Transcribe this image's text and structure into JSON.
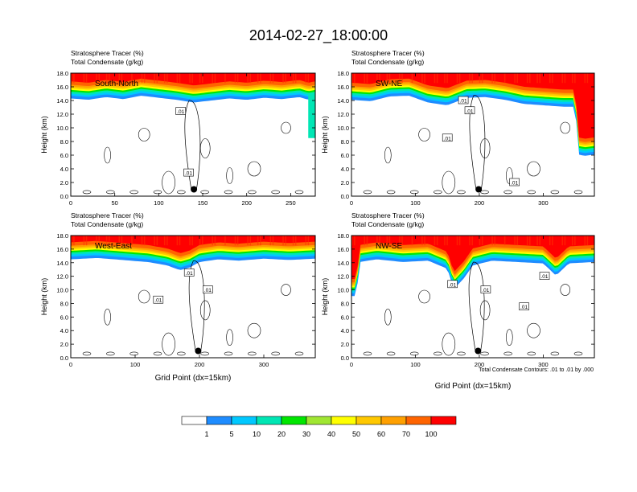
{
  "title": "2014-02-27_18:00:00",
  "contour_note": "Total Condensate Contours: .01 to .01 by .000",
  "colorbar": {
    "colors": [
      "#ffffff",
      "#1e8cff",
      "#00c8ff",
      "#00e6b4",
      "#00e600",
      "#a0e632",
      "#ffff00",
      "#ffc800",
      "#ffa000",
      "#ff6400",
      "#ff0000"
    ],
    "labels": [
      "1",
      "5",
      "10",
      "20",
      "30",
      "40",
      "50",
      "60",
      "70",
      "100"
    ]
  },
  "chart_data": [
    {
      "type": "heatmap",
      "panel_label": "South-North",
      "title_lines": [
        "Stratosphere Tracer   (%)",
        "Total Condensate   (g/kg)"
      ],
      "ylabel": "Height (km)",
      "xlabel": "",
      "xlim": [
        0,
        278
      ],
      "ylim": [
        0,
        18
      ],
      "xticks": [
        0,
        50,
        100,
        150,
        200,
        250
      ],
      "yticks": [
        "0.0",
        "2.0",
        "4.0",
        "6.0",
        "8.0",
        "10.0",
        "12.0",
        "14.0",
        "16.0",
        "18.0"
      ],
      "marker": {
        "x": 140,
        "y": 1.0
      },
      "contour_labels": [
        {
          "x": 125,
          "y": 12.4,
          "text": ".01"
        },
        {
          "x": 134,
          "y": 3.4,
          "text": ".01"
        }
      ],
      "tropopause": [
        [
          0,
          15.2
        ],
        [
          20,
          15.0
        ],
        [
          40,
          15.4
        ],
        [
          60,
          15.1
        ],
        [
          80,
          15.6
        ],
        [
          100,
          15.3
        ],
        [
          120,
          15.0
        ],
        [
          140,
          14.6
        ],
        [
          160,
          14.9
        ],
        [
          180,
          15.2
        ],
        [
          200,
          15.0
        ],
        [
          220,
          15.3
        ],
        [
          240,
          15.1
        ],
        [
          260,
          15.4
        ],
        [
          270,
          15.0
        ],
        [
          278,
          15.2
        ]
      ],
      "edge_plumes": [
        {
          "x0": 270,
          "x1": 278,
          "ylow": 8.5
        }
      ]
    },
    {
      "type": "heatmap",
      "panel_label": "SW-NE",
      "title_lines": [
        "Stratosphere Tracer   (%)",
        "Total Condensate   (g/kg)"
      ],
      "ylabel": "Height (km)",
      "xlabel": "",
      "xlim": [
        0,
        380
      ],
      "ylim": [
        0,
        18
      ],
      "xticks": [
        0,
        100,
        200,
        300
      ],
      "yticks": [
        "0.0",
        "2.0",
        "4.0",
        "6.0",
        "8.0",
        "10.0",
        "12.0",
        "14.0",
        "16.0",
        "18.0"
      ],
      "marker": {
        "x": 199,
        "y": 1.0
      },
      "contour_labels": [
        {
          "x": 175,
          "y": 14.0,
          "text": ".01"
        },
        {
          "x": 185,
          "y": 12.5,
          "text": ".01"
        },
        {
          "x": 150,
          "y": 8.5,
          "text": ".01"
        },
        {
          "x": 255,
          "y": 2.0,
          "text": ".01"
        }
      ],
      "tropopause": [
        [
          0,
          15.0
        ],
        [
          30,
          14.8
        ],
        [
          60,
          15.5
        ],
        [
          90,
          15.6
        ],
        [
          120,
          14.6
        ],
        [
          150,
          14.2
        ],
        [
          180,
          15.3
        ],
        [
          210,
          15.4
        ],
        [
          240,
          15.0
        ],
        [
          270,
          14.4
        ],
        [
          300,
          14.2
        ],
        [
          330,
          14.0
        ],
        [
          350,
          14.0
        ],
        [
          355,
          7.0
        ],
        [
          365,
          6.8
        ],
        [
          380,
          7.0
        ]
      ],
      "edge_plumes": []
    },
    {
      "type": "heatmap",
      "panel_label": "West-East",
      "title_lines": [
        "Stratosphere Tracer   (%)",
        "Total Condensate   (g/kg)"
      ],
      "ylabel": "Height (km)",
      "xlabel": "Grid Point (dx=15km)",
      "xlim": [
        0,
        380
      ],
      "ylim": [
        0,
        18
      ],
      "xticks": [
        0,
        100,
        200,
        300
      ],
      "yticks": [
        "0.0",
        "2.0",
        "4.0",
        "6.0",
        "8.0",
        "10.0",
        "12.0",
        "14.0",
        "16.0",
        "18.0"
      ],
      "marker": {
        "x": 198,
        "y": 1.0
      },
      "contour_labels": [
        {
          "x": 184,
          "y": 12.5,
          "text": ".01"
        },
        {
          "x": 213,
          "y": 10.0,
          "text": ".01"
        },
        {
          "x": 136,
          "y": 8.5,
          "text": ".01"
        }
      ],
      "tropopause": [
        [
          0,
          15.4
        ],
        [
          40,
          15.6
        ],
        [
          80,
          15.3
        ],
        [
          120,
          15.0
        ],
        [
          150,
          14.5
        ],
        [
          170,
          13.8
        ],
        [
          185,
          14.2
        ],
        [
          200,
          15.0
        ],
        [
          230,
          15.4
        ],
        [
          260,
          15.2
        ],
        [
          300,
          15.5
        ],
        [
          340,
          15.3
        ],
        [
          380,
          15.5
        ]
      ],
      "edge_plumes": []
    },
    {
      "type": "heatmap",
      "panel_label": "NW-SE",
      "title_lines": [
        "Stratosphere Tracer   (%)",
        "Total Condensate   (g/kg)"
      ],
      "ylabel": "Height (km)",
      "xlabel": "Grid Point (dx=15km)",
      "xlim": [
        0,
        380
      ],
      "ylim": [
        0,
        18
      ],
      "xticks": [
        0,
        100,
        200,
        300
      ],
      "yticks": [
        "0.0",
        "2.0",
        "4.0",
        "6.0",
        "8.0",
        "10.0",
        "12.0",
        "14.0",
        "16.0",
        "18.0"
      ],
      "marker": {
        "x": 198,
        "y": 1.0
      },
      "contour_labels": [
        {
          "x": 158,
          "y": 10.8,
          "text": ".01"
        },
        {
          "x": 210,
          "y": 10.0,
          "text": ".01"
        },
        {
          "x": 302,
          "y": 12.0,
          "text": ".01"
        },
        {
          "x": 270,
          "y": 7.5,
          "text": ".01"
        }
      ],
      "tropopause": [
        [
          0,
          10.0
        ],
        [
          8,
          10.0
        ],
        [
          12,
          15.0
        ],
        [
          40,
          15.4
        ],
        [
          80,
          15.0
        ],
        [
          120,
          15.2
        ],
        [
          150,
          14.0
        ],
        [
          160,
          11.0
        ],
        [
          175,
          12.5
        ],
        [
          190,
          14.5
        ],
        [
          220,
          15.2
        ],
        [
          260,
          15.0
        ],
        [
          300,
          14.8
        ],
        [
          320,
          13.0
        ],
        [
          340,
          14.8
        ],
        [
          380,
          15.0
        ]
      ],
      "edge_plumes": []
    }
  ]
}
